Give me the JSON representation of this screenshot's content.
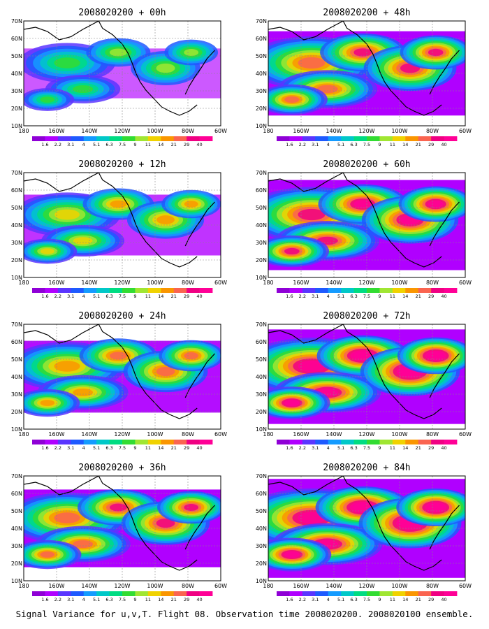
{
  "panels": [
    {
      "title": "2008020200 + 00h",
      "intensity": 0.25
    },
    {
      "title": "2008020200 + 48h",
      "intensity": 0.72
    },
    {
      "title": "2008020200 + 12h",
      "intensity": 0.4
    },
    {
      "title": "2008020200 + 60h",
      "intensity": 0.8
    },
    {
      "title": "2008020200 + 24h",
      "intensity": 0.55
    },
    {
      "title": "2008020200 + 72h",
      "intensity": 0.86
    },
    {
      "title": "2008020200 + 36h",
      "intensity": 0.63
    },
    {
      "title": "2008020200 + 84h",
      "intensity": 0.92
    }
  ],
  "lat_labels": [
    "70N",
    "60N",
    "50N",
    "40N",
    "30N",
    "20N",
    "10N"
  ],
  "lon_labels": [
    "180",
    "160W",
    "140W",
    "120W",
    "100W",
    "80W",
    "60W"
  ],
  "colorbar": {
    "labels": [
      "1.6",
      "2.2",
      "3.1",
      "4",
      "5.1",
      "6.3",
      "7.5",
      "9",
      "11",
      "14",
      "21",
      "29",
      "40"
    ],
    "colors": [
      "#8f00d6",
      "#b000ff",
      "#5a35ff",
      "#1e5aff",
      "#149bff",
      "#00c8c8",
      "#00dc82",
      "#32dc32",
      "#a0e632",
      "#f0d200",
      "#fa9600",
      "#fa6450",
      "#f00082",
      "#ff0096"
    ]
  },
  "caption": "Signal Variance for u,v,T. Flight 08. Observation time 2008020200. 2008020100 ensemble."
}
